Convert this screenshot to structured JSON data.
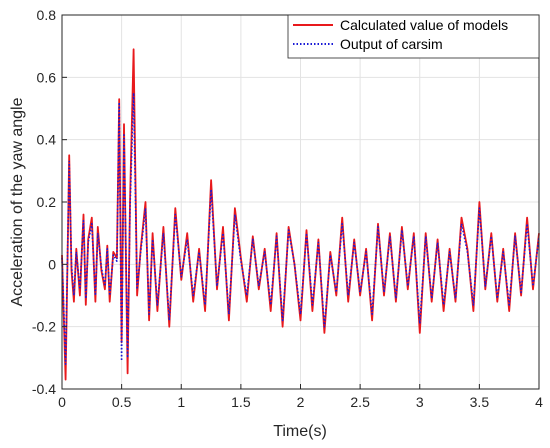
{
  "chart_data": {
    "type": "line",
    "title": "",
    "xlabel": "Time(s)",
    "ylabel": "Acceleration of the yaw angle",
    "xlim": [
      0,
      4
    ],
    "ylim": [
      -0.4,
      0.8
    ],
    "x_ticks": [
      "0",
      "0.5",
      "1",
      "1.5",
      "2",
      "2.5",
      "3",
      "3.5",
      "4"
    ],
    "y_ticks": [
      "-0.4",
      "-0.2",
      "0",
      "0.2",
      "0.4",
      "0.6",
      "0.8"
    ],
    "grid": true,
    "legend_position": "top-right",
    "x": [
      0,
      0.03,
      0.06,
      0.08,
      0.1,
      0.12,
      0.15,
      0.18,
      0.2,
      0.22,
      0.25,
      0.28,
      0.3,
      0.33,
      0.36,
      0.38,
      0.4,
      0.43,
      0.46,
      0.48,
      0.5,
      0.52,
      0.55,
      0.57,
      0.6,
      0.63,
      0.66,
      0.7,
      0.73,
      0.76,
      0.8,
      0.85,
      0.9,
      0.95,
      1.0,
      1.05,
      1.1,
      1.15,
      1.2,
      1.25,
      1.3,
      1.35,
      1.4,
      1.45,
      1.5,
      1.55,
      1.6,
      1.65,
      1.7,
      1.75,
      1.8,
      1.85,
      1.9,
      1.95,
      2.0,
      2.05,
      2.1,
      2.15,
      2.2,
      2.25,
      2.3,
      2.35,
      2.4,
      2.45,
      2.5,
      2.55,
      2.6,
      2.65,
      2.7,
      2.75,
      2.8,
      2.85,
      2.9,
      2.95,
      3.0,
      3.05,
      3.1,
      3.15,
      3.2,
      3.25,
      3.3,
      3.35,
      3.4,
      3.45,
      3.5,
      3.55,
      3.6,
      3.65,
      3.7,
      3.75,
      3.8,
      3.85,
      3.9,
      3.95,
      4.0
    ],
    "series": [
      {
        "name": "Calculated value of models",
        "color": "#e8191c",
        "style": "solid",
        "values": [
          0.03,
          -0.37,
          0.35,
          -0.02,
          -0.12,
          0.05,
          -0.1,
          0.16,
          -0.13,
          0.08,
          0.15,
          -0.12,
          0.12,
          -0.02,
          -0.08,
          0.06,
          -0.12,
          0.04,
          0.02,
          0.53,
          -0.25,
          0.45,
          -0.35,
          0.2,
          0.69,
          -0.1,
          0.05,
          0.2,
          -0.18,
          0.1,
          -0.15,
          0.12,
          -0.2,
          0.18,
          -0.05,
          0.1,
          -0.12,
          0.05,
          -0.15,
          0.27,
          -0.08,
          0.12,
          -0.18,
          0.18,
          0.02,
          -0.12,
          0.09,
          -0.08,
          0.05,
          -0.15,
          0.1,
          -0.2,
          0.12,
          0.0,
          -0.18,
          0.11,
          -0.15,
          0.08,
          -0.22,
          0.04,
          -0.1,
          0.15,
          -0.12,
          0.08,
          -0.1,
          0.05,
          -0.18,
          0.13,
          -0.1,
          0.1,
          -0.12,
          0.12,
          -0.08,
          0.1,
          -0.22,
          0.1,
          -0.12,
          0.08,
          -0.15,
          0.05,
          -0.12,
          0.15,
          0.05,
          -0.15,
          0.2,
          -0.08,
          0.1,
          -0.12,
          0.05,
          -0.15,
          0.1,
          -0.1,
          0.15,
          -0.08,
          0.1
        ]
      },
      {
        "name": "Output of carsim",
        "color": "#1a1ad6",
        "style": "dotted",
        "values": [
          0.02,
          -0.32,
          0.33,
          0.0,
          -0.1,
          0.04,
          -0.08,
          0.14,
          -0.11,
          0.07,
          0.13,
          -0.1,
          0.1,
          -0.01,
          -0.07,
          0.05,
          -0.1,
          0.03,
          0.01,
          0.52,
          -0.31,
          0.42,
          -0.3,
          0.18,
          0.55,
          -0.08,
          0.04,
          0.18,
          -0.16,
          0.08,
          -0.13,
          0.1,
          -0.18,
          0.16,
          -0.04,
          0.08,
          -0.1,
          0.04,
          -0.13,
          0.24,
          -0.07,
          0.1,
          -0.16,
          0.16,
          0.01,
          -0.1,
          0.08,
          -0.07,
          0.04,
          -0.13,
          0.09,
          -0.18,
          0.11,
          0.0,
          -0.16,
          0.1,
          -0.13,
          0.07,
          -0.2,
          0.03,
          -0.09,
          0.13,
          -0.1,
          0.07,
          -0.09,
          0.04,
          -0.16,
          0.12,
          -0.09,
          0.09,
          -0.11,
          0.11,
          -0.07,
          0.09,
          -0.19,
          0.09,
          -0.11,
          0.07,
          -0.13,
          0.04,
          -0.11,
          0.13,
          0.04,
          -0.13,
          0.18,
          -0.07,
          0.09,
          -0.11,
          0.04,
          -0.13,
          0.09,
          -0.09,
          0.13,
          -0.07,
          0.09
        ]
      }
    ]
  }
}
